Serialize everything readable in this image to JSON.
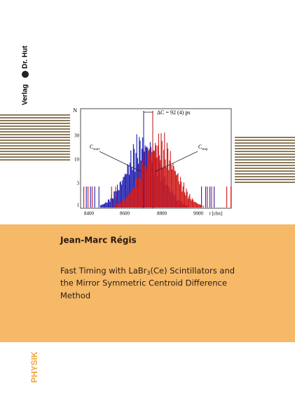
{
  "publisher": {
    "line1": "Verlag",
    "line2": "Dr. Hut"
  },
  "figure": {
    "y_label": "N",
    "x_label": "t [chn]",
    "yticks": [
      "1",
      "3",
      "10",
      "30"
    ],
    "xticks": [
      "8400",
      "8600",
      "8800",
      "9000"
    ],
    "delta": "ΔC = 92 (4) ps",
    "c_start": {
      "main": "C",
      "sub": "start"
    },
    "c_stop": {
      "main": "C",
      "sub": "stop"
    }
  },
  "author": "Jean-Marc Régis",
  "title": {
    "line1a": "Fast Timing with LaBr",
    "line1sub": "3",
    "line1b": "(Ce) Scintillators and",
    "line2": "the Mirror Symmetric Centroid Difference",
    "line3": "Method"
  },
  "series_label": "PHYSIK"
}
